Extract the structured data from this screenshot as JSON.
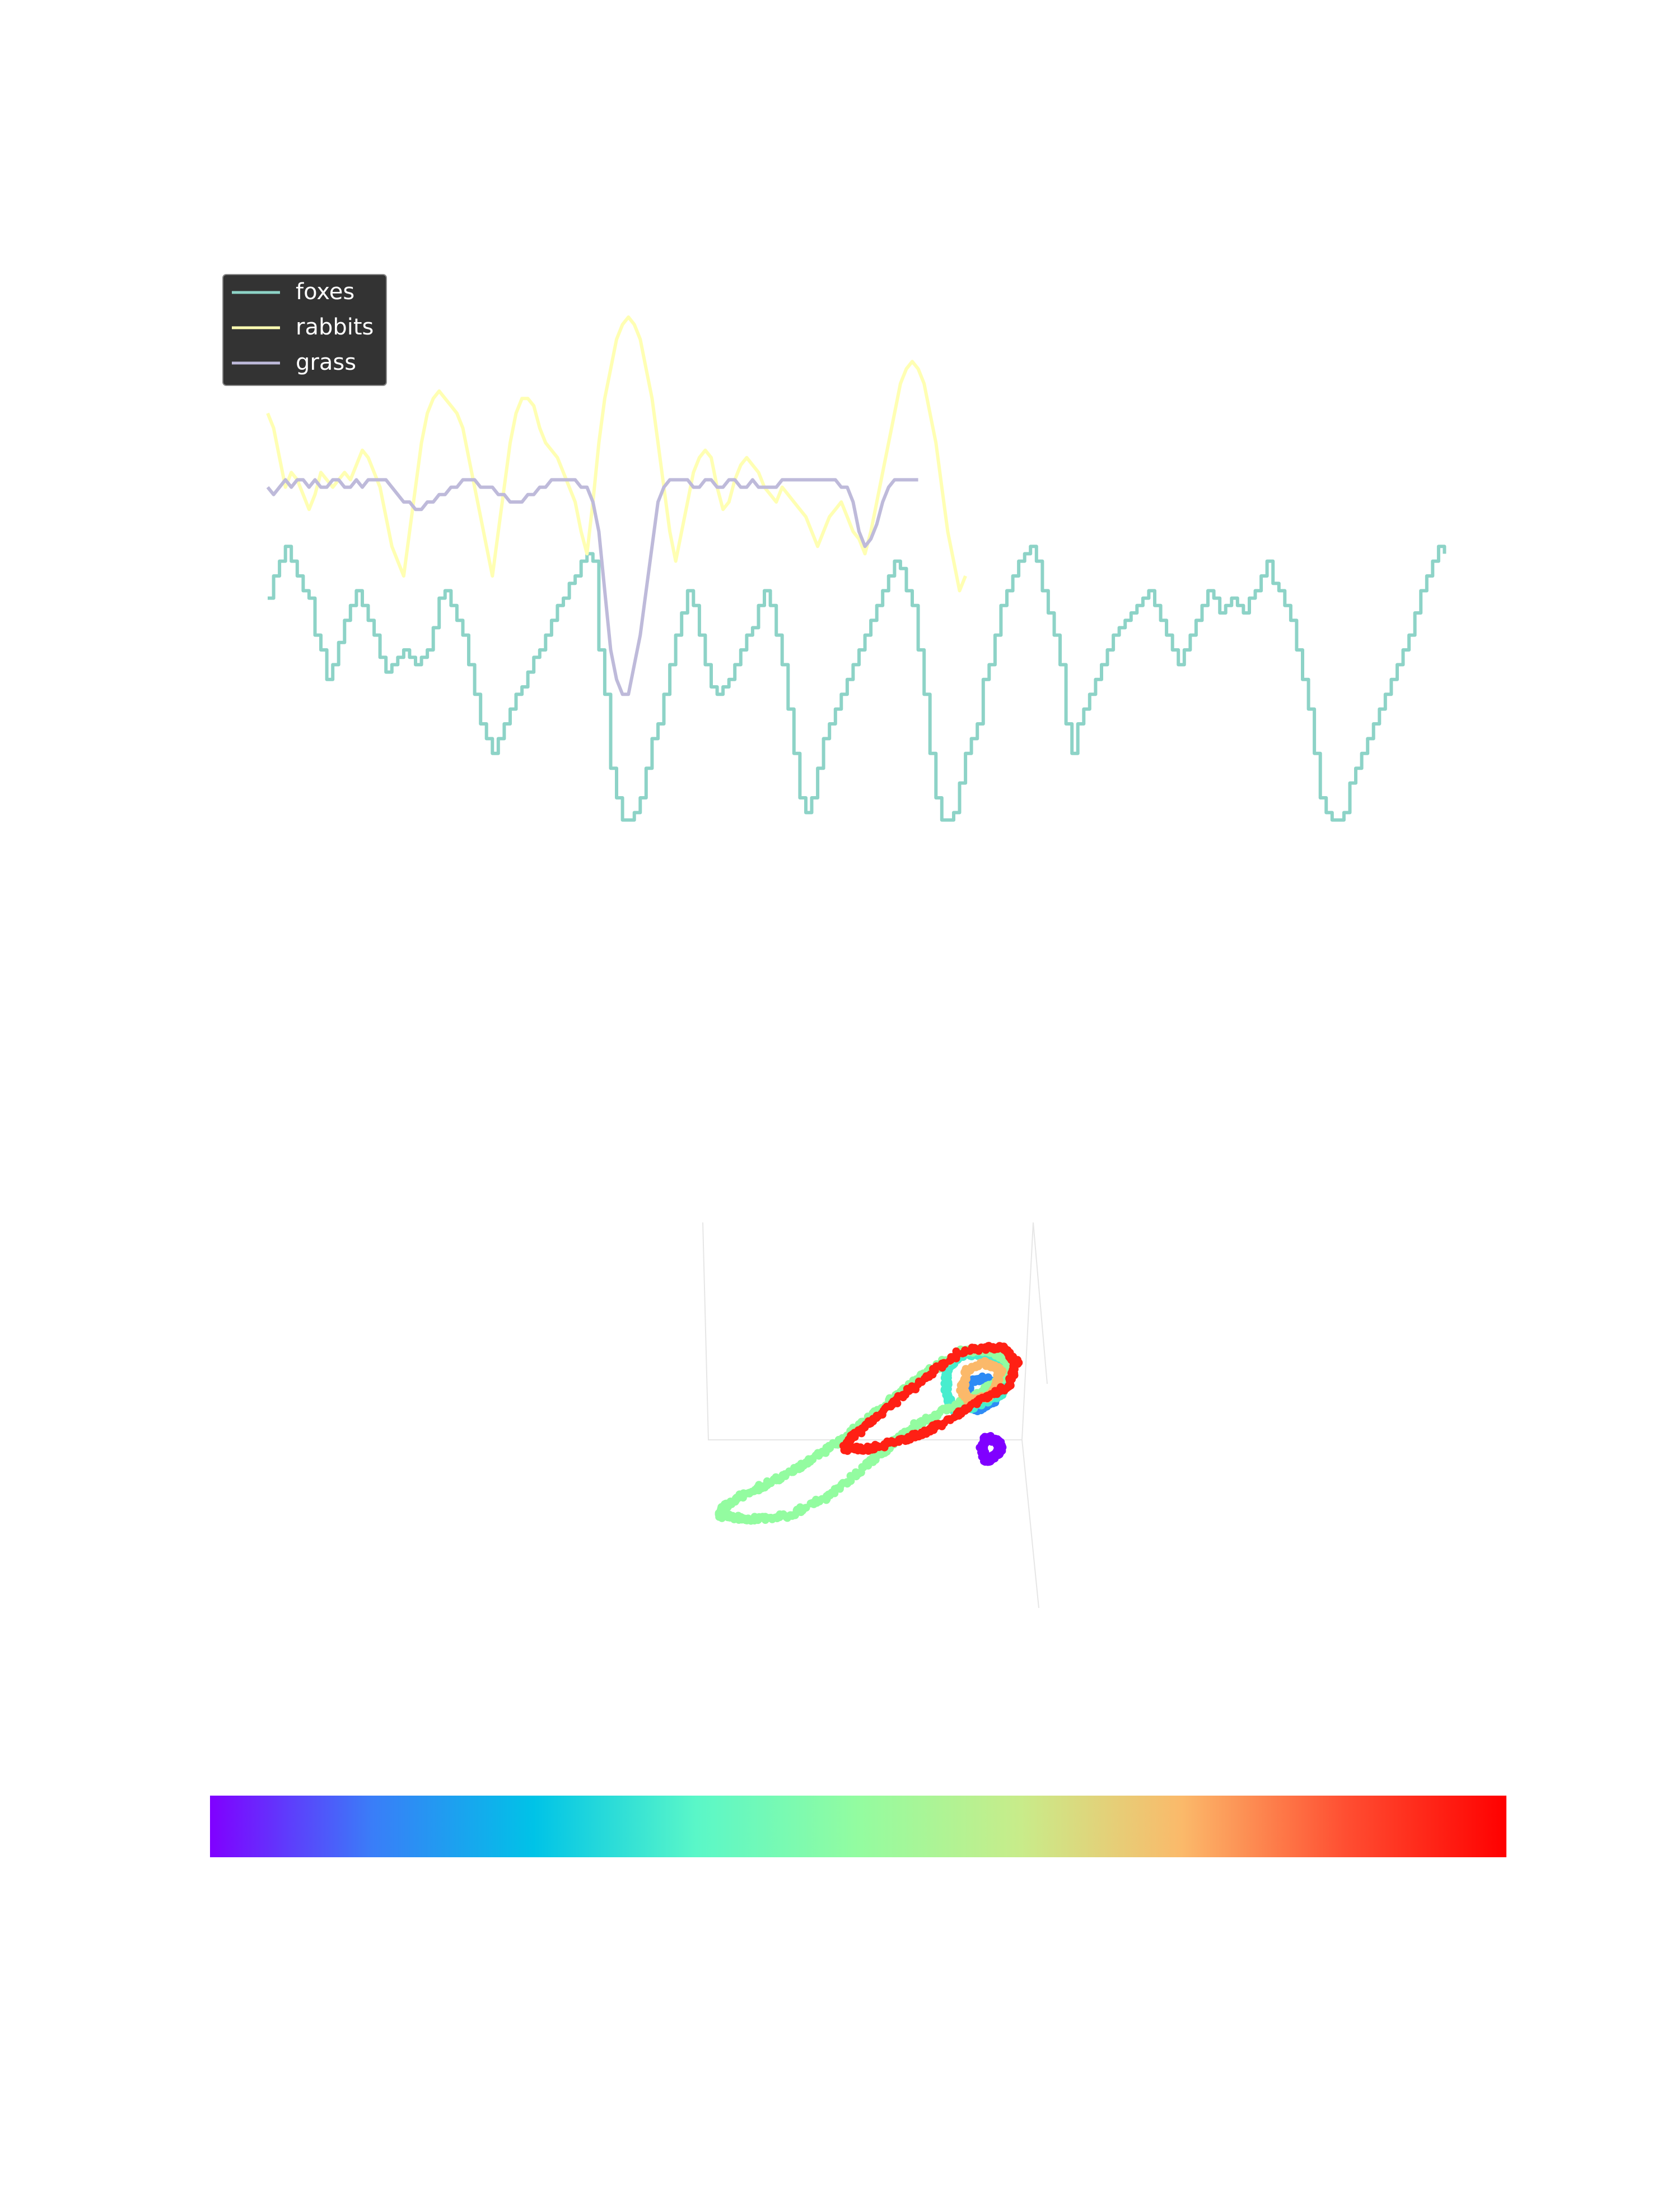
{
  "chart_data": [
    {
      "type": "line",
      "title": "",
      "xlabel": "",
      "ylabel": "",
      "axes_visible": false,
      "grid": false,
      "legend": {
        "placement": "top-left",
        "style": "dark"
      },
      "xlim": [
        0,
        1000
      ],
      "ylim": [
        0,
        100
      ],
      "x_spacing": 5,
      "series": [
        {
          "name": "foxes",
          "color": "#8dd3c7",
          "stepped": true,
          "values": [
            57,
            60,
            62,
            64,
            62,
            60,
            58,
            57,
            52,
            50,
            46,
            48,
            51,
            54,
            56,
            58,
            56,
            54,
            52,
            49,
            47,
            48,
            49,
            50,
            49,
            48,
            49,
            50,
            53,
            57,
            58,
            56,
            54,
            52,
            48,
            44,
            40,
            38,
            36,
            38,
            40,
            42,
            44,
            45,
            47,
            49,
            50,
            52,
            54,
            56,
            57,
            59,
            60,
            62,
            63,
            62,
            50,
            44,
            34,
            30,
            27,
            27,
            28,
            30,
            34,
            38,
            40,
            44,
            48,
            52,
            55,
            58,
            56,
            52,
            48,
            45,
            44,
            45,
            46,
            48,
            50,
            52,
            53,
            56,
            58,
            56,
            52,
            48,
            42,
            36,
            30,
            28,
            30,
            34,
            38,
            40,
            42,
            44,
            46,
            48,
            50,
            52,
            54,
            56,
            58,
            60,
            62,
            61,
            58,
            56,
            50,
            44,
            36,
            30,
            27,
            27,
            28,
            32,
            36,
            38,
            40,
            46,
            48,
            52,
            56,
            58,
            60,
            62,
            63,
            64,
            62,
            58,
            55,
            52,
            48,
            40,
            36,
            40,
            42,
            44,
            46,
            48,
            50,
            52,
            53,
            54,
            55,
            56,
            57,
            58,
            56,
            54,
            52,
            50,
            48,
            50,
            52,
            54,
            56,
            58,
            57,
            55,
            56,
            57,
            56,
            55,
            57,
            58,
            60,
            62,
            59,
            58,
            56,
            54,
            50,
            46,
            42,
            36,
            30,
            28,
            27,
            27,
            28,
            32,
            34,
            36,
            38,
            40,
            42,
            44,
            46,
            48,
            50,
            52,
            55,
            58,
            60,
            62,
            64,
            63
          ]
        },
        {
          "name": "rabbits",
          "color": "#ffffb3",
          "stepped": false,
          "values": [
            82,
            80,
            76,
            72,
            74,
            73,
            71,
            69,
            71,
            74,
            73,
            72,
            73,
            74,
            73,
            75,
            77,
            76,
            74,
            72,
            68,
            64,
            62,
            60,
            66,
            72,
            78,
            82,
            84,
            85,
            84,
            83,
            82,
            80,
            76,
            72,
            68,
            64,
            60,
            66,
            72,
            78,
            82,
            84,
            84,
            83,
            80,
            78,
            77,
            76,
            74,
            72,
            70,
            66,
            63,
            70,
            78,
            84,
            88,
            92,
            94,
            95,
            94,
            92,
            88,
            84,
            78,
            72,
            66,
            62,
            66,
            70,
            74,
            76,
            77,
            76,
            72,
            69,
            70,
            73,
            75,
            76,
            75,
            74,
            72,
            71,
            70,
            72,
            71,
            70,
            69,
            68,
            66,
            64,
            66,
            68,
            69,
            70,
            68,
            66,
            65,
            63,
            66,
            70,
            74,
            78,
            82,
            86,
            88,
            89,
            88,
            86,
            82,
            78,
            72,
            66,
            62,
            58,
            60
          ]
        },
        {
          "name": "grass",
          "color": "#bebada",
          "stepped": false,
          "values": [
            72,
            71,
            72,
            73,
            72,
            73,
            73,
            72,
            73,
            72,
            72,
            73,
            73,
            72,
            72,
            73,
            72,
            73,
            73,
            73,
            73,
            72,
            71,
            70,
            70,
            69,
            69,
            70,
            70,
            71,
            71,
            72,
            72,
            73,
            73,
            73,
            72,
            72,
            72,
            71,
            71,
            70,
            70,
            70,
            71,
            71,
            72,
            72,
            73,
            73,
            73,
            73,
            73,
            72,
            72,
            70,
            66,
            58,
            50,
            46,
            44,
            44,
            48,
            52,
            58,
            64,
            70,
            72,
            73,
            73,
            73,
            73,
            72,
            72,
            73,
            73,
            72,
            72,
            73,
            73,
            72,
            72,
            73,
            72,
            72,
            72,
            72,
            73,
            73,
            73,
            73,
            73,
            73,
            73,
            73,
            73,
            73,
            72,
            72,
            70,
            66,
            64,
            65,
            67,
            70,
            72,
            73,
            73,
            73,
            73,
            73
          ]
        }
      ]
    },
    {
      "type": "scatter",
      "projection": "3d",
      "title": "",
      "axes_visible": false,
      "grid": false,
      "colormap": "rainbow",
      "colormap_stops": [
        "#8000ff",
        "#3a7df8",
        "#00c3e7",
        "#5af7c8",
        "#93fca0",
        "#c8ec8a",
        "#fbb96a",
        "#ff4f32",
        "#ff0000"
      ],
      "colorbar": {
        "orientation": "horizontal",
        "placement": "bottom",
        "ticks_visible": false
      },
      "loops": [
        {
          "cmap_pos": 0.0,
          "points": [
            [
              0.82,
              0.6
            ],
            [
              0.84,
              0.58
            ],
            [
              0.83,
              0.56
            ],
            [
              0.8,
              0.55
            ],
            [
              0.79,
              0.58
            ],
            [
              0.8,
              0.61
            ],
            [
              0.82,
              0.6
            ]
          ]
        },
        {
          "cmap_pos": 0.15,
          "points": [
            [
              0.78,
              0.48
            ],
            [
              0.82,
              0.46
            ],
            [
              0.83,
              0.42
            ],
            [
              0.8,
              0.4
            ],
            [
              0.76,
              0.41
            ],
            [
              0.75,
              0.45
            ],
            [
              0.78,
              0.48
            ]
          ]
        },
        {
          "cmap_pos": 0.35,
          "points": [
            [
              0.72,
              0.48
            ],
            [
              0.78,
              0.47
            ],
            [
              0.84,
              0.44
            ],
            [
              0.85,
              0.38
            ],
            [
              0.8,
              0.34
            ],
            [
              0.74,
              0.34
            ],
            [
              0.7,
              0.38
            ],
            [
              0.7,
              0.44
            ],
            [
              0.72,
              0.48
            ]
          ]
        },
        {
          "cmap_pos": 0.5,
          "points": [
            [
              0.62,
              0.52
            ],
            [
              0.7,
              0.48
            ],
            [
              0.78,
              0.44
            ],
            [
              0.84,
              0.4
            ],
            [
              0.86,
              0.36
            ],
            [
              0.82,
              0.33
            ],
            [
              0.74,
              0.33
            ],
            [
              0.66,
              0.38
            ],
            [
              0.58,
              0.44
            ],
            [
              0.48,
              0.52
            ],
            [
              0.4,
              0.58
            ],
            [
              0.3,
              0.64
            ],
            [
              0.22,
              0.68
            ],
            [
              0.14,
              0.72
            ],
            [
              0.12,
              0.75
            ],
            [
              0.2,
              0.76
            ],
            [
              0.3,
              0.75
            ],
            [
              0.4,
              0.7
            ],
            [
              0.5,
              0.62
            ],
            [
              0.56,
              0.57
            ],
            [
              0.62,
              0.52
            ]
          ]
        },
        {
          "cmap_pos": 0.75,
          "points": [
            [
              0.76,
              0.46
            ],
            [
              0.82,
              0.44
            ],
            [
              0.84,
              0.38
            ],
            [
              0.8,
              0.36
            ],
            [
              0.75,
              0.38
            ],
            [
              0.74,
              0.43
            ],
            [
              0.76,
              0.46
            ]
          ]
        },
        {
          "cmap_pos": 0.95,
          "points": [
            [
              0.68,
              0.52
            ],
            [
              0.78,
              0.46
            ],
            [
              0.86,
              0.42
            ],
            [
              0.88,
              0.36
            ],
            [
              0.84,
              0.32
            ],
            [
              0.74,
              0.33
            ],
            [
              0.62,
              0.42
            ],
            [
              0.52,
              0.5
            ],
            [
              0.46,
              0.55
            ],
            [
              0.44,
              0.58
            ],
            [
              0.5,
              0.58
            ],
            [
              0.58,
              0.56
            ],
            [
              0.64,
              0.54
            ],
            [
              0.68,
              0.52
            ]
          ]
        }
      ]
    }
  ]
}
